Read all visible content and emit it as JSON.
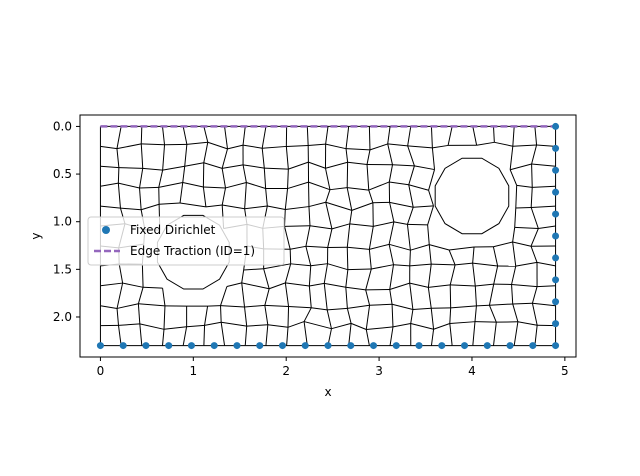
{
  "chart_data": {
    "type": "scatter",
    "title": "",
    "xlabel": "x",
    "ylabel": "y",
    "xlim": [
      -0.22,
      5.12
    ],
    "ylim": [
      2.42,
      -0.12
    ],
    "y_inverted": true,
    "x_ticks": [
      0,
      1,
      2,
      3,
      4,
      5
    ],
    "y_ticks": [
      0.0,
      0.5,
      1.0,
      1.5,
      2.0
    ],
    "x_tick_labels": [
      "0",
      "1",
      "2",
      "3",
      "4",
      "5"
    ],
    "y_tick_labels": [
      "0.0",
      "0.5",
      "1.0",
      "1.5",
      "2.0"
    ],
    "grid": false,
    "legend_position": "center-left",
    "domain": {
      "x_min": 0.0,
      "x_max": 4.9,
      "y_min": 0.0,
      "y_max": 2.3
    },
    "holes": [
      {
        "cx": 1.0,
        "cy": 1.32,
        "r": 0.4
      },
      {
        "cx": 4.0,
        "cy": 0.73,
        "r": 0.41
      }
    ],
    "series": [
      {
        "name": "Fixed Dirichlet",
        "kind": "points",
        "color": "#1f77b4",
        "x": [
          0.0,
          0.245,
          0.49,
          0.735,
          0.98,
          1.225,
          1.47,
          1.715,
          1.96,
          2.205,
          2.45,
          2.695,
          2.94,
          3.185,
          3.43,
          3.675,
          3.92,
          4.165,
          4.41,
          4.655,
          4.9,
          4.9,
          4.9,
          4.9,
          4.9,
          4.9,
          4.9,
          4.9,
          4.9,
          4.9,
          4.9
        ],
        "y": [
          2.3,
          2.3,
          2.3,
          2.3,
          2.3,
          2.3,
          2.3,
          2.3,
          2.3,
          2.3,
          2.3,
          2.3,
          2.3,
          2.3,
          2.3,
          2.3,
          2.3,
          2.3,
          2.3,
          2.3,
          2.3,
          2.07,
          1.84,
          1.61,
          1.38,
          1.15,
          0.92,
          0.69,
          0.46,
          0.23,
          0.0
        ]
      },
      {
        "name": "Edge Traction (ID=1)",
        "kind": "dashed-line",
        "color": "#9467bd",
        "x": [
          0.0,
          4.9
        ],
        "y": [
          0.0,
          0.0
        ]
      }
    ],
    "mesh": {
      "color": "#000000",
      "description": "unstructured quadrilateral mesh"
    }
  }
}
